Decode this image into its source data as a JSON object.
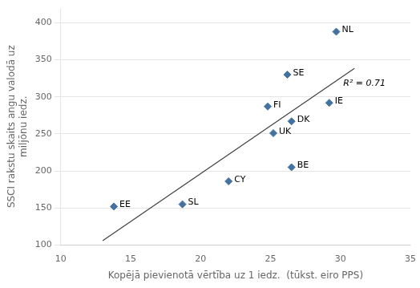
{
  "chart_data": {
    "type": "scatter",
    "x_label": "Kopējā pievienotā vērtība uz 1 iedz.  (tūkst. eiro PPS)",
    "y_label": "SSCI rakstu skaits angu valodā uz\nmiljōnu iedz.",
    "labels": [
      "EE",
      "SL",
      "CY",
      "FI",
      "UK",
      "SE",
      "DK",
      "BE",
      "IE",
      "NL"
    ],
    "x": [
      13.8,
      18.7,
      22.0,
      24.8,
      25.2,
      26.2,
      26.5,
      26.5,
      29.2,
      29.7
    ],
    "values": [
      152,
      155,
      186,
      287,
      251,
      330,
      267,
      205,
      292,
      388
    ],
    "color": "#4472a0",
    "marker": "diamond",
    "trendline": {
      "x": [
        13.0,
        31.0
      ],
      "values": [
        105.8512,
        338.3626
      ],
      "color": "#404040",
      "line_style": "solid"
    },
    "annotations": [
      {
        "text": "R² = 0.71",
        "x": 30.2,
        "y": 318
      }
    ],
    "xlim": [
      10,
      35
    ],
    "ylim": [
      100,
      420
    ],
    "xticks": [
      10,
      15,
      20,
      25,
      30,
      35
    ],
    "yticks": [
      100,
      150,
      200,
      250,
      300,
      350,
      400
    ],
    "grid": "y"
  }
}
